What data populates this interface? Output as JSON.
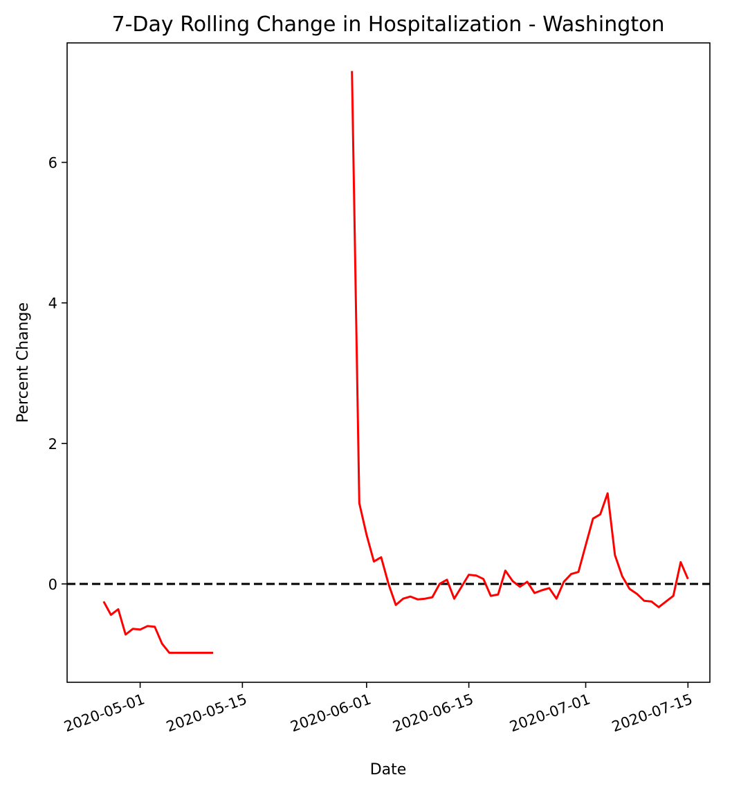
{
  "chart_data": {
    "type": "line",
    "title": "7-Day Rolling Change in Hospitalization - Washington",
    "xlabel": "Date",
    "ylabel": "Percent Change",
    "xlim": [
      "2020-04-21",
      "2020-07-18"
    ],
    "ylim": [
      -1.4,
      7.7
    ],
    "x_ticks": [
      "2020-05-01",
      "2020-05-15",
      "2020-06-01",
      "2020-06-15",
      "2020-07-01",
      "2020-07-15"
    ],
    "y_ticks": [
      0,
      2,
      4,
      6
    ],
    "grid": false,
    "reference_line": {
      "y": 0,
      "style": "dashed",
      "color": "#000000"
    },
    "series": [
      {
        "color": "#ff0000",
        "points": [
          [
            "2020-04-26",
            -0.25
          ],
          [
            "2020-04-27",
            -0.44
          ],
          [
            "2020-04-28",
            -0.36
          ],
          [
            "2020-04-29",
            -0.72
          ],
          [
            "2020-04-30",
            -0.64
          ],
          [
            "2020-05-01",
            -0.65
          ],
          [
            "2020-05-02",
            -0.6
          ],
          [
            "2020-05-03",
            -0.61
          ],
          [
            "2020-05-04",
            -0.85
          ],
          [
            "2020-05-05",
            -0.98
          ],
          [
            "2020-05-06",
            -0.98
          ],
          [
            "2020-05-07",
            -0.98
          ],
          [
            "2020-05-08",
            -0.98
          ],
          [
            "2020-05-09",
            -0.98
          ],
          [
            "2020-05-10",
            -0.98
          ],
          [
            "2020-05-11",
            -0.98
          ],
          [
            null,
            null
          ],
          [
            "2020-05-30",
            7.3
          ],
          [
            "2020-05-31",
            1.15
          ],
          [
            "2020-06-01",
            0.7
          ],
          [
            "2020-06-02",
            0.32
          ],
          [
            "2020-06-03",
            0.38
          ],
          [
            "2020-06-04",
            0.0
          ],
          [
            "2020-06-05",
            -0.3
          ],
          [
            "2020-06-06",
            -0.21
          ],
          [
            "2020-06-07",
            -0.18
          ],
          [
            "2020-06-08",
            -0.22
          ],
          [
            "2020-06-09",
            -0.21
          ],
          [
            "2020-06-10",
            -0.19
          ],
          [
            "2020-06-11",
            0.0
          ],
          [
            "2020-06-12",
            0.06
          ],
          [
            "2020-06-13",
            -0.21
          ],
          [
            "2020-06-14",
            -0.04
          ],
          [
            "2020-06-15",
            0.13
          ],
          [
            "2020-06-16",
            0.12
          ],
          [
            "2020-06-17",
            0.07
          ],
          [
            "2020-06-18",
            -0.17
          ],
          [
            "2020-06-19",
            -0.15
          ],
          [
            "2020-06-20",
            0.19
          ],
          [
            "2020-06-21",
            0.04
          ],
          [
            "2020-06-22",
            -0.04
          ],
          [
            "2020-06-23",
            0.03
          ],
          [
            "2020-06-24",
            -0.13
          ],
          [
            "2020-06-25",
            -0.09
          ],
          [
            "2020-06-26",
            -0.06
          ],
          [
            "2020-06-27",
            -0.21
          ],
          [
            "2020-06-28",
            0.03
          ],
          [
            "2020-06-29",
            0.14
          ],
          [
            "2020-06-30",
            0.17
          ],
          [
            "2020-07-01",
            0.55
          ],
          [
            "2020-07-02",
            0.93
          ],
          [
            "2020-07-03",
            0.99
          ],
          [
            "2020-07-04",
            1.29
          ],
          [
            "2020-07-05",
            0.41
          ],
          [
            "2020-07-06",
            0.11
          ],
          [
            "2020-07-07",
            -0.07
          ],
          [
            "2020-07-08",
            -0.14
          ],
          [
            "2020-07-09",
            -0.24
          ],
          [
            "2020-07-10",
            -0.25
          ],
          [
            "2020-07-11",
            -0.33
          ],
          [
            "2020-07-12",
            -0.25
          ],
          [
            "2020-07-13",
            -0.17
          ],
          [
            "2020-07-14",
            0.31
          ],
          [
            "2020-07-15",
            0.07
          ]
        ]
      }
    ]
  }
}
